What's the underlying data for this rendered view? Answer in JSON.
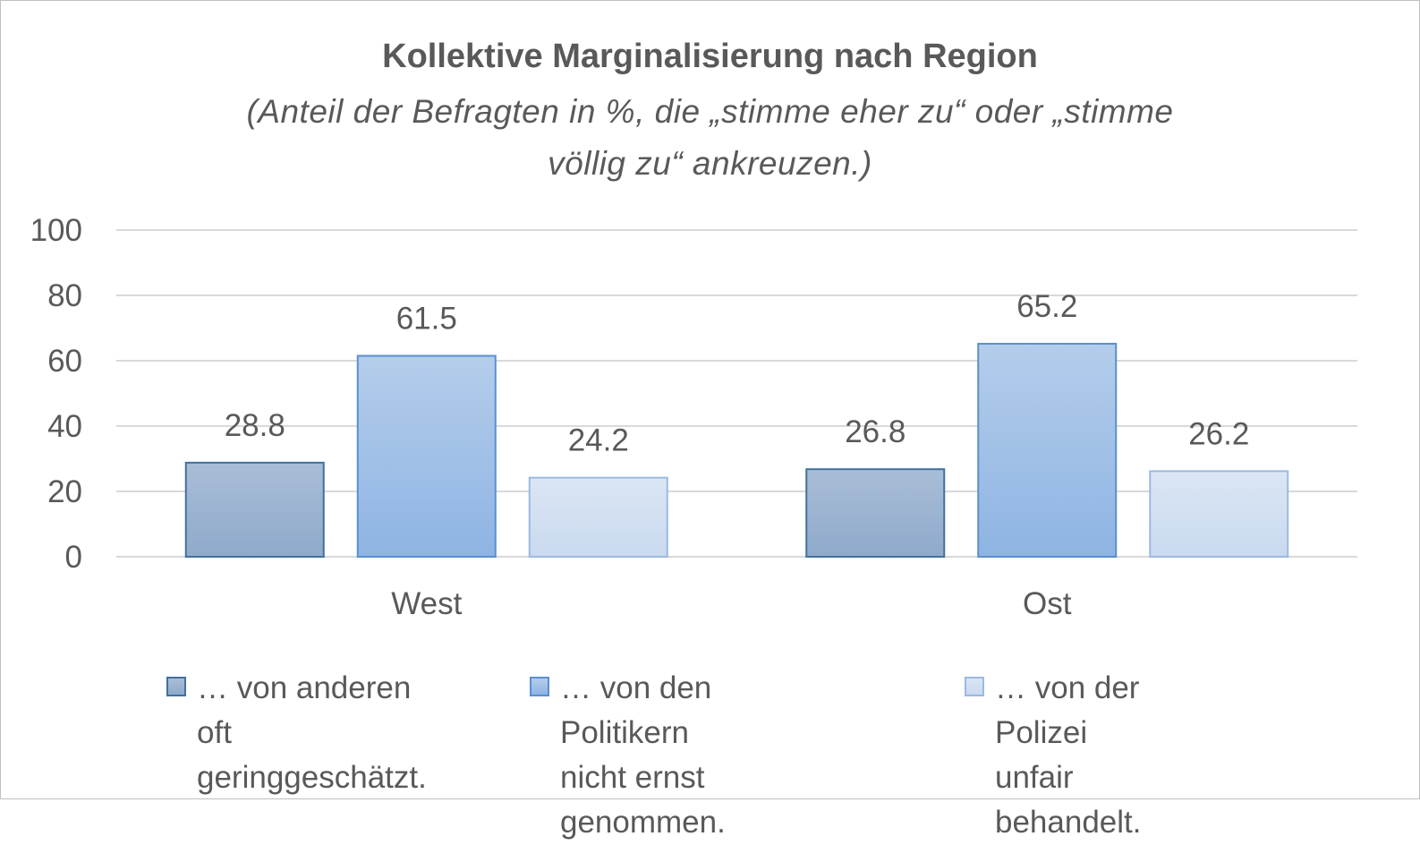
{
  "chart_data": {
    "type": "bar",
    "title": "Kollektive Marginalisierung nach Region",
    "subtitle_line1": "(Anteil der Befragten in %, die „stimme eher zu“ oder „stimme",
    "subtitle_line2": "völlig zu“ ankreuzen.)",
    "categories": [
      "West",
      "Ost"
    ],
    "series": [
      {
        "name": "… von anderen oft geringgeschätzt.",
        "legend_line1": "… von anderen oft",
        "legend_line2": "geringgeschätzt.",
        "values": [
          28.8,
          26.8
        ],
        "color": "#8faacb",
        "color_top": "#a9bdd7",
        "border": "#41719c"
      },
      {
        "name": "… von den Politikern nicht ernst genommen.",
        "legend_line1": "… von den Politikern",
        "legend_line2": "nicht ernst genommen.",
        "values": [
          61.5,
          65.2
        ],
        "color": "#8eb4e3",
        "color_top": "#b4cdeb",
        "border": "#5b8fcf"
      },
      {
        "name": "… von der Polizei unfair behandelt.",
        "legend_line1": "… von der Polizei",
        "legend_line2": "unfair behandelt.",
        "values": [
          24.2,
          26.2
        ],
        "color": "#c9d9ef",
        "color_top": "#dbe6f4",
        "border": "#9cb9e0"
      }
    ],
    "ylim": [
      0,
      100
    ],
    "yticks": [
      0,
      20,
      40,
      60,
      80,
      100
    ],
    "grid": true,
    "legend_position": "bottom",
    "text_color": "#595959",
    "grid_color": "#d9d9d9"
  }
}
